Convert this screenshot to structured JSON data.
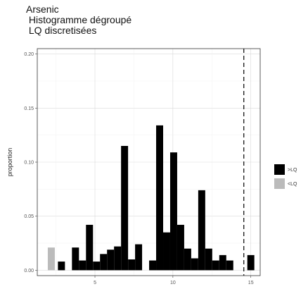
{
  "title_lines": [
    "Arsenic",
    " Histogramme dégroupé",
    " LQ discretisées"
  ],
  "chart_data": {
    "type": "bar",
    "title": "Arsenic Histogramme dégroupé LQ discretisées",
    "xlabel": "",
    "ylabel": "proportion",
    "xlim": [
      1.3,
      15.6
    ],
    "ylim": [
      -0.005,
      0.205
    ],
    "x_ticks": [
      5,
      10,
      15
    ],
    "y_ticks": [
      0.0,
      0.05,
      0.1,
      0.15,
      0.2
    ],
    "y_tick_labels": [
      "0.00",
      "0.05",
      "0.10",
      "0.15",
      "0.20"
    ],
    "bin_width": 0.45,
    "grid": true,
    "reference_line": {
      "x": 14.55,
      "style": "dashed"
    },
    "legend_position": "right",
    "series": [
      {
        "name": ">LQ",
        "color": "#000000",
        "bars": [
          {
            "x": 2.85,
            "y": 0.008
          },
          {
            "x": 3.75,
            "y": 0.021
          },
          {
            "x": 4.2,
            "y": 0.009
          },
          {
            "x": 4.65,
            "y": 0.042
          },
          {
            "x": 5.1,
            "y": 0.008
          },
          {
            "x": 5.55,
            "y": 0.015
          },
          {
            "x": 6.0,
            "y": 0.019
          },
          {
            "x": 6.45,
            "y": 0.022
          },
          {
            "x": 6.9,
            "y": 0.115
          },
          {
            "x": 7.35,
            "y": 0.01
          },
          {
            "x": 7.8,
            "y": 0.024
          },
          {
            "x": 8.7,
            "y": 0.009
          },
          {
            "x": 9.15,
            "y": 0.134
          },
          {
            "x": 9.6,
            "y": 0.035
          },
          {
            "x": 10.05,
            "y": 0.109
          },
          {
            "x": 10.5,
            "y": 0.042
          },
          {
            "x": 10.95,
            "y": 0.02
          },
          {
            "x": 11.4,
            "y": 0.011
          },
          {
            "x": 11.85,
            "y": 0.074
          },
          {
            "x": 12.3,
            "y": 0.02
          },
          {
            "x": 12.75,
            "y": 0.009
          },
          {
            "x": 13.2,
            "y": 0.014
          },
          {
            "x": 13.65,
            "y": 0.009
          },
          {
            "x": 15.0,
            "y": 0.014
          }
        ]
      },
      {
        "name": "<LQ",
        "color": "#bbbbbb",
        "bars": [
          {
            "x": 2.2,
            "y": 0.021
          }
        ]
      }
    ]
  }
}
